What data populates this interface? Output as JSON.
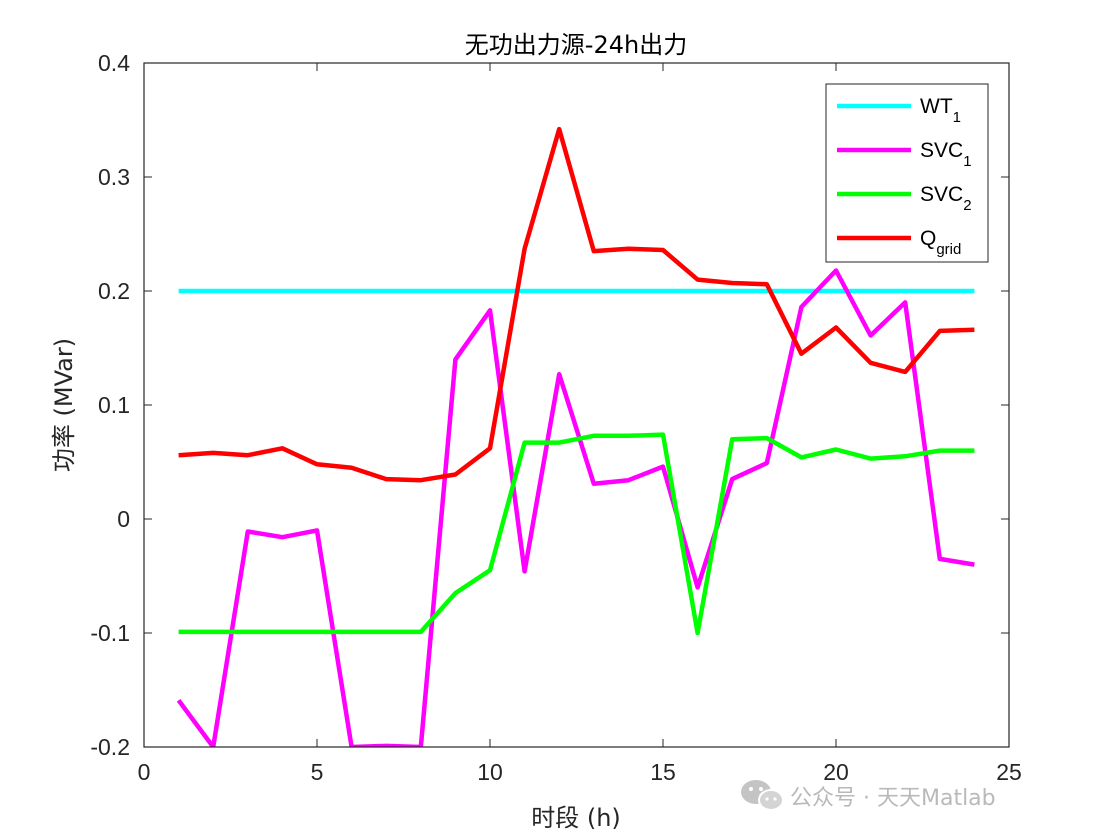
{
  "chart_data": {
    "type": "line",
    "title": "无功出力源-24h出力",
    "xlabel": "时段 (h)",
    "ylabel": "功率 (MVar)",
    "xlim": [
      0,
      25
    ],
    "ylim": [
      -0.2,
      0.4
    ],
    "xticks": [
      0,
      5,
      10,
      15,
      20,
      25
    ],
    "yticks": [
      -0.2,
      -0.1,
      0,
      0.1,
      0.2,
      0.3,
      0.4
    ],
    "xtick_labels": [
      "0",
      "5",
      "10",
      "15",
      "20",
      "25"
    ],
    "ytick_labels": [
      "-0.2",
      "-0.1",
      "0",
      "0.1",
      "0.2",
      "0.3",
      "0.4"
    ],
    "grid": false,
    "legend_position": "top-right",
    "x": [
      1,
      2,
      3,
      4,
      5,
      6,
      7,
      8,
      9,
      10,
      11,
      12,
      13,
      14,
      15,
      16,
      17,
      18,
      19,
      20,
      21,
      22,
      23,
      24
    ],
    "series": [
      {
        "name": "WT",
        "subscript": "1",
        "color": "#00ffff",
        "values": [
          0.2,
          0.2,
          0.2,
          0.2,
          0.2,
          0.2,
          0.2,
          0.2,
          0.2,
          0.2,
          0.2,
          0.2,
          0.2,
          0.2,
          0.2,
          0.2,
          0.2,
          0.2,
          0.2,
          0.2,
          0.2,
          0.2,
          0.2,
          0.2
        ]
      },
      {
        "name": "SVC",
        "subscript": "1",
        "color": "#ff00ff",
        "values": [
          -0.159,
          -0.2,
          -0.011,
          -0.016,
          -0.01,
          -0.2,
          -0.199,
          -0.2,
          0.14,
          0.183,
          -0.046,
          0.127,
          0.031,
          0.034,
          0.046,
          -0.06,
          0.035,
          0.049,
          0.186,
          0.218,
          0.161,
          0.19,
          -0.035,
          -0.04
        ]
      },
      {
        "name": "SVC",
        "subscript": "2",
        "color": "#00ff00",
        "values": [
          -0.099,
          -0.099,
          -0.099,
          -0.099,
          -0.099,
          -0.099,
          -0.099,
          -0.099,
          -0.065,
          -0.045,
          0.067,
          0.067,
          0.073,
          0.073,
          0.074,
          -0.1,
          0.07,
          0.071,
          0.054,
          0.061,
          0.053,
          0.055,
          0.06,
          0.06
        ]
      },
      {
        "name": "Q",
        "subscript": "grid",
        "color": "#ff0000",
        "values": [
          0.056,
          0.058,
          0.056,
          0.062,
          0.048,
          0.045,
          0.035,
          0.034,
          0.039,
          0.062,
          0.237,
          0.342,
          0.235,
          0.237,
          0.236,
          0.21,
          0.207,
          0.206,
          0.145,
          0.168,
          0.137,
          0.129,
          0.165,
          0.166
        ]
      }
    ]
  },
  "watermark": {
    "text": "公众号 · 天天Matlab",
    "icon": "wechat-icon"
  }
}
